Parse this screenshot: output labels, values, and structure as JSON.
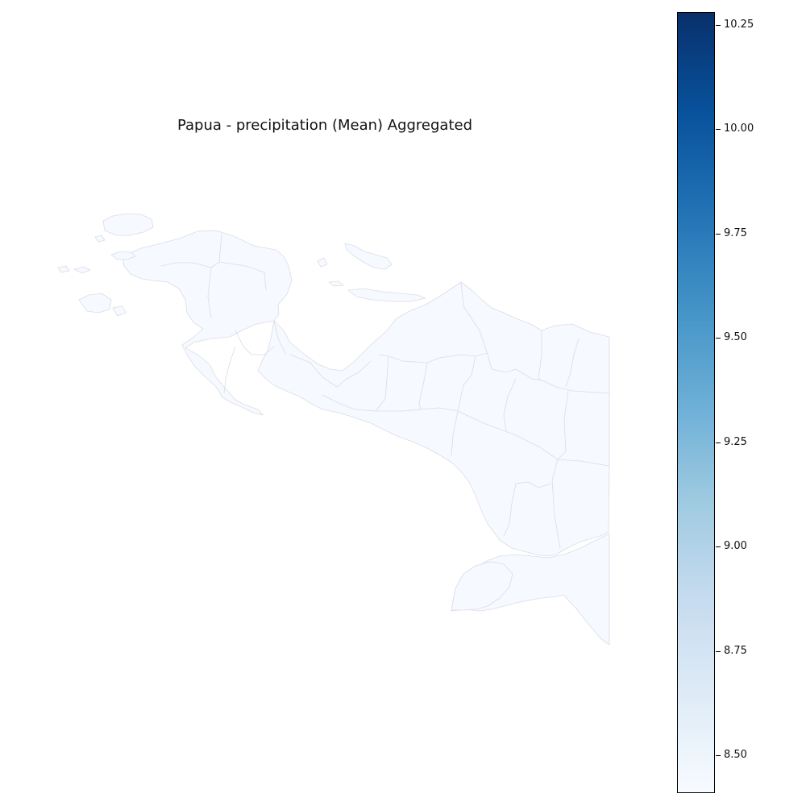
{
  "map": {
    "title": "Papua - precipitation (Mean) Aggregated",
    "region": "Papua",
    "region_fill_color": "#f6f9ff",
    "border_color": "#d9dde3",
    "background_color": "#ffffff"
  },
  "colorbar": {
    "colormap": "Blues",
    "min": 8.41,
    "max": 10.28,
    "gradient_colors": [
      "#f7fbff",
      "#deebf7",
      "#c6dbef",
      "#9ecae1",
      "#6baed6",
      "#4292c6",
      "#2171b5",
      "#08519c",
      "#08306b"
    ],
    "ticks": [
      {
        "value": 10.25,
        "label": "10.25"
      },
      {
        "value": 10.0,
        "label": "10.00"
      },
      {
        "value": 9.75,
        "label": "9.75"
      },
      {
        "value": 9.5,
        "label": "9.50"
      },
      {
        "value": 9.25,
        "label": "9.25"
      },
      {
        "value": 9.0,
        "label": "9.00"
      },
      {
        "value": 8.75,
        "label": "8.75"
      },
      {
        "value": 8.5,
        "label": "8.50"
      }
    ]
  }
}
